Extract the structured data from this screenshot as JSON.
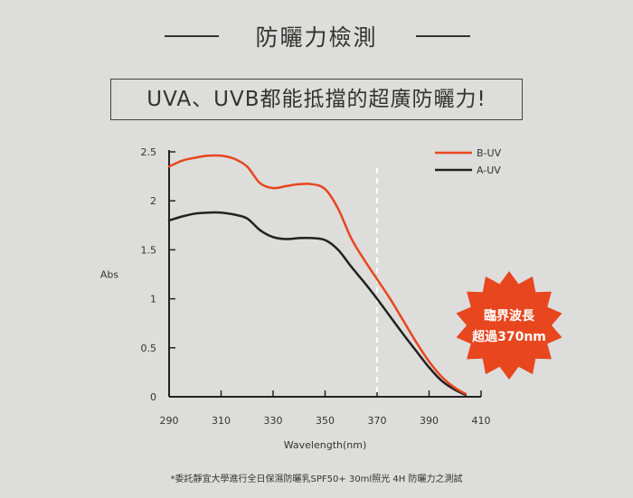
{
  "header": {
    "title": "防曬力檢測"
  },
  "banner": {
    "text": "UVA、UVB都能抵擋的超廣防曬力!"
  },
  "burst": {
    "line1": "臨界波長",
    "line2": "超過370nm",
    "color": "#e8461e"
  },
  "footnote": "*委託靜宜大學進行全日保濕防曬乳SPF50+ 30ml照光 4H 防曬力之測試",
  "chart_data": {
    "type": "line",
    "xlabel": "Wavelength(nm)",
    "ylabel": "Abs",
    "xlim": [
      290,
      410
    ],
    "ylim": [
      0,
      2.5
    ],
    "xticks": [
      290,
      310,
      330,
      350,
      370,
      390,
      410
    ],
    "yticks": [
      0,
      0.5,
      1,
      1.5,
      2,
      2.5
    ],
    "ytick_labels": [
      "0",
      "0.5",
      "1",
      "1.5",
      "2",
      "2.5"
    ],
    "legend_position": "top-right",
    "critical_wavelength": 370,
    "series": [
      {
        "name": "B-UV",
        "color": "#e8461e",
        "x": [
          290,
          295,
          300,
          305,
          310,
          315,
          320,
          325,
          330,
          335,
          340,
          345,
          350,
          355,
          360,
          365,
          370,
          375,
          380,
          385,
          390,
          395,
          400,
          404
        ],
        "y": [
          2.35,
          2.41,
          2.44,
          2.46,
          2.46,
          2.43,
          2.35,
          2.18,
          2.13,
          2.15,
          2.17,
          2.17,
          2.12,
          1.92,
          1.62,
          1.4,
          1.2,
          1.0,
          0.78,
          0.56,
          0.36,
          0.2,
          0.09,
          0.03
        ]
      },
      {
        "name": "A-UV",
        "color": "#222222",
        "x": [
          290,
          295,
          300,
          305,
          310,
          315,
          320,
          325,
          330,
          335,
          340,
          345,
          350,
          355,
          360,
          365,
          370,
          375,
          380,
          385,
          390,
          395,
          400,
          404
        ],
        "y": [
          1.8,
          1.84,
          1.87,
          1.88,
          1.88,
          1.86,
          1.82,
          1.7,
          1.63,
          1.61,
          1.62,
          1.62,
          1.6,
          1.5,
          1.33,
          1.17,
          1.0,
          0.82,
          0.64,
          0.47,
          0.3,
          0.16,
          0.07,
          0.02
        ]
      }
    ]
  }
}
